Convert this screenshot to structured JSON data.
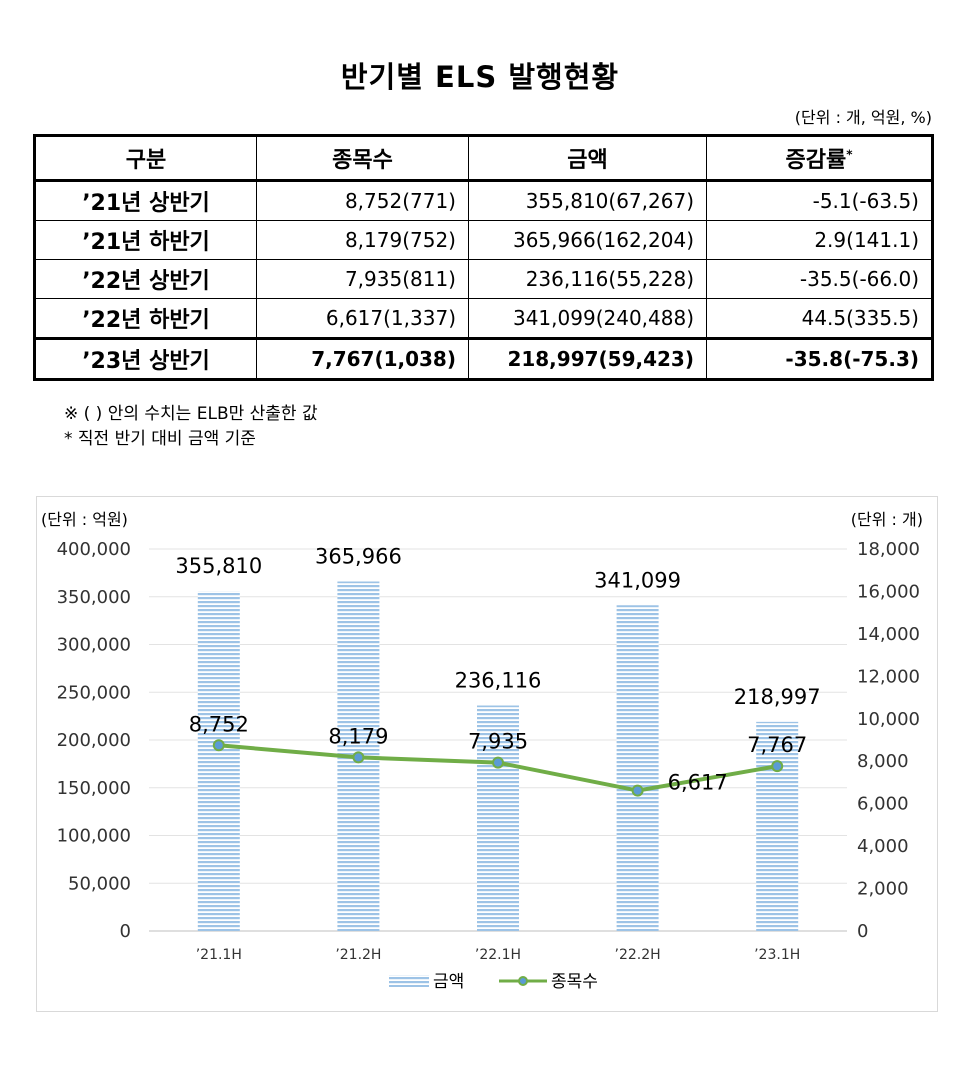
{
  "title": "반기별 ELS 발행현황",
  "unit_note": "(단위 : 개, 억원, %)",
  "table": {
    "headers": [
      "구분",
      "종목수",
      "금액",
      "증감률"
    ],
    "header_sup": "*",
    "rows": [
      {
        "label": "’21년 상반기",
        "count": "8,752(771)",
        "amount": "355,810(67,267)",
        "change": "-5.1(-63.5)"
      },
      {
        "label": "’21년 하반기",
        "count": "8,179(752)",
        "amount": "365,966(162,204)",
        "change": "2.9(141.1)"
      },
      {
        "label": "’22년 상반기",
        "count": "7,935(811)",
        "amount": "236,116(55,228)",
        "change": "-35.5(-66.0)"
      },
      {
        "label": "’22년 하반기",
        "count": "6,617(1,337)",
        "amount": "341,099(240,488)",
        "change": "44.5(335.5)"
      },
      {
        "label": "’23년 상반기",
        "count": "7,767(1,038)",
        "amount": "218,997(59,423)",
        "change": "-35.8(-75.3)"
      }
    ]
  },
  "notes": [
    "※ (  ) 안의 수치는 ELB만 산출한 값",
    "* 직전 반기 대비 금액 기준"
  ],
  "chart_data": {
    "type": "bar",
    "categories": [
      "’21.1H",
      "’21.2H",
      "’22.1H",
      "’22.2H",
      "’23.1H"
    ],
    "series": [
      {
        "name": "금액",
        "type": "bar",
        "axis": "left",
        "values": [
          355810,
          365966,
          236116,
          341099,
          218997
        ],
        "labels": [
          "355,810",
          "365,966",
          "236,116",
          "341,099",
          "218,997"
        ],
        "color": "#9dc3e6"
      },
      {
        "name": "종목수",
        "type": "line",
        "axis": "right",
        "values": [
          8752,
          8179,
          7935,
          6617,
          7767
        ],
        "labels": [
          "8,752",
          "8,179",
          "7,935",
          "6,617",
          "7,767"
        ],
        "color": "#70ad47",
        "marker_color": "#5b9bd5"
      }
    ],
    "left_axis": {
      "label": "(단위 : 억원)",
      "ylim": [
        0,
        400000
      ],
      "ticks": [
        "0",
        "50,000",
        "100,000",
        "150,000",
        "200,000",
        "250,000",
        "300,000",
        "350,000",
        "400,000"
      ]
    },
    "right_axis": {
      "label": "(단위 : 개)",
      "ylim": [
        0,
        18000
      ],
      "ticks": [
        "0",
        "2,000",
        "4,000",
        "6,000",
        "8,000",
        "10,000",
        "12,000",
        "14,000",
        "16,000",
        "18,000"
      ]
    },
    "grid": true,
    "legend": "bottom-center"
  }
}
